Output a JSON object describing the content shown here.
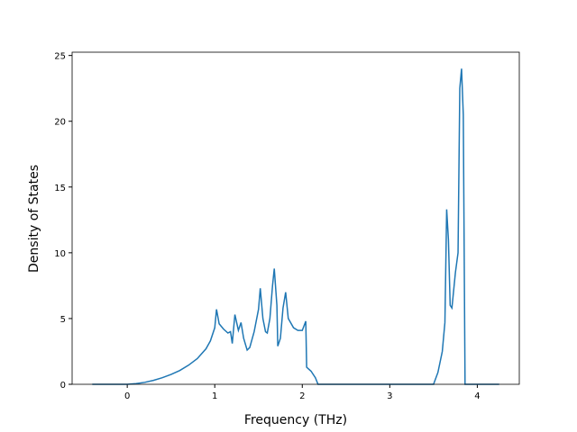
{
  "chart_data": {
    "type": "line",
    "xlabel": "Frequency (THz)",
    "ylabel": "Density of States",
    "x": [
      -0.4,
      0,
      0.1,
      0.2,
      0.3,
      0.4,
      0.5,
      0.6,
      0.7,
      0.8,
      0.9,
      0.95,
      1.0,
      1.02,
      1.05,
      1.1,
      1.15,
      1.18,
      1.2,
      1.23,
      1.27,
      1.3,
      1.33,
      1.37,
      1.4,
      1.45,
      1.5,
      1.52,
      1.55,
      1.58,
      1.6,
      1.63,
      1.66,
      1.68,
      1.71,
      1.72,
      1.75,
      1.78,
      1.81,
      1.84,
      1.9,
      1.95,
      2.0,
      2.04,
      2.05,
      2.1,
      2.15,
      2.18,
      3.0,
      3.5,
      3.55,
      3.6,
      3.63,
      3.65,
      3.67,
      3.69,
      3.71,
      3.75,
      3.78,
      3.8,
      3.82,
      3.84,
      3.86,
      4.25
    ],
    "series": [
      {
        "color": "#1f77b4",
        "values": [
          0,
          0,
          0.05,
          0.15,
          0.3,
          0.5,
          0.75,
          1.05,
          1.45,
          1.95,
          2.7,
          3.3,
          4.3,
          5.7,
          4.6,
          4.2,
          3.9,
          4.0,
          3.1,
          5.3,
          4.1,
          4.7,
          3.5,
          2.6,
          2.8,
          4.0,
          5.7,
          7.3,
          5.0,
          4.0,
          3.9,
          5.0,
          7.5,
          8.8,
          6.0,
          2.9,
          3.5,
          5.8,
          7.0,
          5.0,
          4.3,
          4.1,
          4.1,
          4.8,
          1.3,
          1.0,
          0.5,
          0,
          0,
          0,
          0.9,
          2.5,
          4.7,
          13.3,
          11.0,
          6.0,
          5.8,
          8.5,
          10.0,
          22.5,
          24.0,
          20.5,
          0,
          0
        ]
      }
    ],
    "xlim": [
      -0.63,
      4.48
    ],
    "xticks": [
      0,
      1,
      2,
      3,
      4
    ],
    "ylim": [
      0,
      25.25
    ],
    "yticks": [
      0,
      5,
      10,
      15,
      20,
      25
    ],
    "grid": false
  }
}
